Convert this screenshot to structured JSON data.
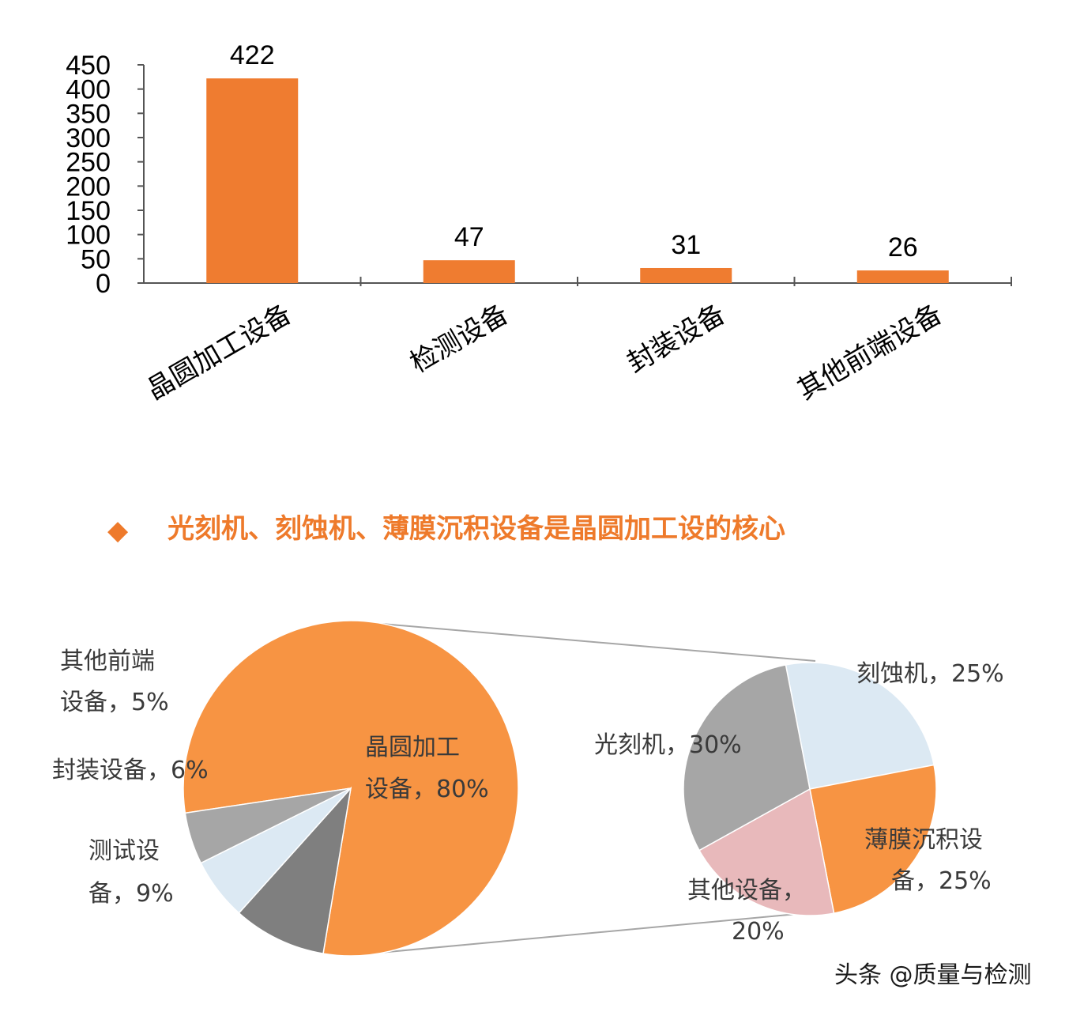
{
  "chart_data": [
    {
      "type": "bar",
      "categories": [
        "晶圆加工设备",
        "检测设备",
        "封装设备",
        "其他前端设备"
      ],
      "values": [
        422,
        47,
        31,
        26
      ],
      "yticks": [
        0,
        50,
        100,
        150,
        200,
        250,
        300,
        350,
        400,
        450
      ],
      "ylim": [
        0,
        450
      ],
      "bar_color": "#ef7c30",
      "grid": false
    },
    {
      "type": "pie",
      "slices": [
        {
          "label": "晶圆加工设备，80%",
          "value": 80,
          "color": "#f79443"
        },
        {
          "label": "测试设备，9%",
          "value": 9,
          "color": "#7f7f7f"
        },
        {
          "label": "封装设备，6%",
          "value": 6,
          "color": "#dce9f3"
        },
        {
          "label": "其他前端设备，5%",
          "value": 5,
          "color": "#a6a6a6"
        }
      ]
    },
    {
      "type": "pie",
      "slices": [
        {
          "label": "刻蚀机，25%",
          "value": 25,
          "color": "#dce9f3"
        },
        {
          "label": "薄膜沉积设备，25%",
          "value": 25,
          "color": "#f79443"
        },
        {
          "label": "其他设备，20%",
          "value": 20,
          "color": "#e8b9bb"
        },
        {
          "label": "光刻机，30%",
          "value": 30,
          "color": "#a6a6a6"
        }
      ]
    }
  ],
  "headline": {
    "bullet": "◆",
    "text": "光刻机、刻蚀机、薄膜沉积设备是晶圆加工设的核心",
    "color": "#ee7a2b"
  },
  "pie_labels": {
    "wafer": [
      "晶圆加工",
      "设备，80%"
    ],
    "test": [
      "测试设",
      "备，9%"
    ],
    "package": [
      "封装设备，6%"
    ],
    "other_front": [
      "其他前端",
      "设备，5%"
    ],
    "etch": [
      "刻蚀机，25%"
    ],
    "litho": [
      "光刻机，30%"
    ],
    "film": [
      "薄膜沉积设",
      "备，25%"
    ],
    "other": [
      "其他设备，",
      "20%"
    ]
  },
  "watermark": "头条 @质量与检测"
}
